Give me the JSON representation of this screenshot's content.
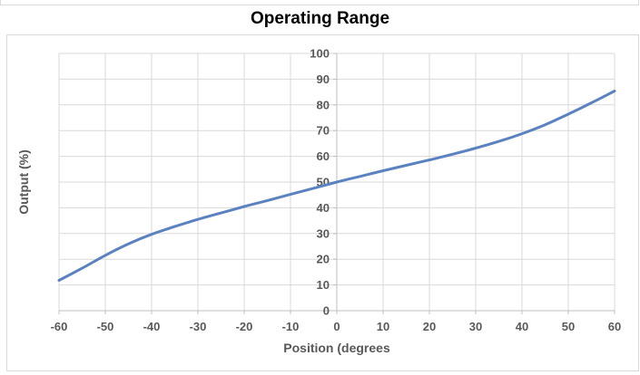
{
  "chart_data": {
    "type": "line",
    "title": "Operating Range",
    "xlabel": "Position (degrees",
    "ylabel": "Output (%)",
    "xlim": [
      -60,
      60
    ],
    "ylim": [
      0,
      100
    ],
    "x_ticks": [
      -60,
      -50,
      -40,
      -30,
      -20,
      -10,
      0,
      10,
      20,
      30,
      40,
      50,
      60
    ],
    "y_ticks": [
      0,
      10,
      20,
      30,
      40,
      50,
      60,
      70,
      80,
      90,
      100
    ],
    "x_tick_labels": [
      "-60",
      "-50",
      "-40",
      "-30",
      "-20",
      "-10",
      "0",
      "10",
      "20",
      "30",
      "40",
      "50",
      "60"
    ],
    "y_tick_labels": [
      "0",
      "10",
      "20",
      "30",
      "40",
      "50",
      "60",
      "70",
      "80",
      "90",
      "100"
    ],
    "grid": true,
    "line_color": "#5b82c0",
    "grid_color": "#d9d9d9",
    "series": [
      {
        "x": [
          -60,
          -55,
          -50,
          -45,
          -40,
          -35,
          -30,
          -25,
          -20,
          -15,
          -10,
          -5,
          0,
          5,
          10,
          15,
          20,
          25,
          30,
          35,
          40,
          45,
          50,
          55,
          60
        ],
        "y": [
          11.8,
          16.5,
          21.5,
          26.0,
          29.7,
          32.7,
          35.5,
          38.0,
          40.5,
          42.8,
          45.2,
          47.6,
          50.0,
          52.2,
          54.4,
          56.5,
          58.6,
          60.8,
          63.2,
          65.8,
          68.8,
          72.3,
          76.4,
          80.8,
          85.4
        ]
      }
    ]
  }
}
